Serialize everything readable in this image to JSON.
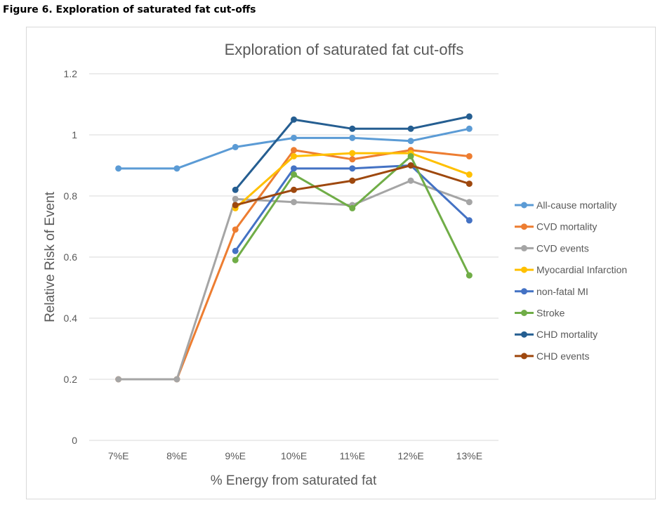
{
  "caption": "Figure 6.   Exploration of saturated fat cut-offs",
  "chart_data": {
    "type": "line",
    "title": "Exploration of saturated fat cut-offs",
    "xlabel": "% Energy from saturated fat",
    "ylabel": "Relative Risk of Event",
    "categories": [
      "7%E",
      "8%E",
      "9%E",
      "10%E",
      "11%E",
      "12%E",
      "13%E"
    ],
    "ylim": [
      0,
      1.2
    ],
    "yticks": [
      "0",
      "0.2",
      "0.4",
      "0.6",
      "0.8",
      "1",
      "1.2"
    ],
    "grid": true,
    "legend": "right",
    "series": [
      {
        "name": "All-cause mortality",
        "color": "#5B9BD5",
        "values": [
          0.89,
          0.89,
          0.96,
          0.99,
          0.99,
          0.98,
          1.02
        ]
      },
      {
        "name": "CVD mortality",
        "color": "#ED7D31",
        "values": [
          0.2,
          0.2,
          0.69,
          0.95,
          0.92,
          0.95,
          0.93
        ]
      },
      {
        "name": "CVD events",
        "color": "#A5A5A5",
        "values": [
          0.2,
          0.2,
          0.79,
          0.78,
          0.77,
          0.85,
          0.78
        ]
      },
      {
        "name": "Myocardial Infarction",
        "color": "#FFC000",
        "values": [
          null,
          null,
          0.76,
          0.93,
          0.94,
          0.94,
          0.87
        ]
      },
      {
        "name": "non-fatal MI",
        "color": "#4472C4",
        "values": [
          null,
          null,
          0.62,
          0.89,
          0.89,
          0.9,
          0.72
        ]
      },
      {
        "name": "Stroke",
        "color": "#70AD47",
        "values": [
          null,
          null,
          0.59,
          0.87,
          0.76,
          0.93,
          0.54
        ]
      },
      {
        "name": "CHD mortality",
        "color": "#255E91",
        "values": [
          null,
          null,
          0.82,
          1.05,
          1.02,
          1.02,
          1.06
        ]
      },
      {
        "name": "CHD events",
        "color": "#9E480E",
        "values": [
          null,
          null,
          0.77,
          0.82,
          0.85,
          0.9,
          0.84
        ]
      }
    ]
  }
}
